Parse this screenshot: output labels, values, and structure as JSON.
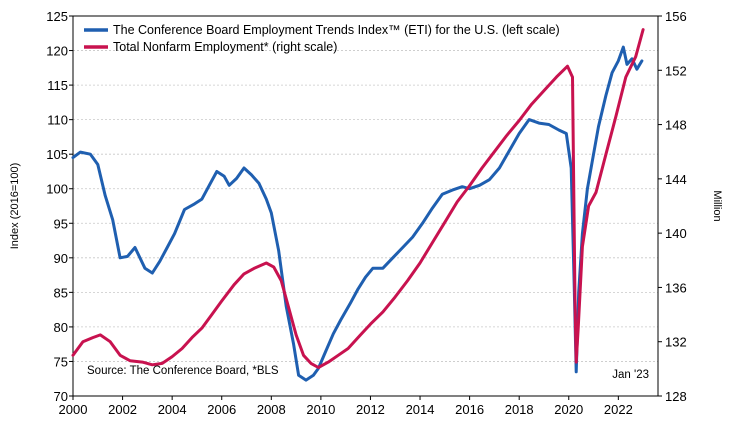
{
  "chart_data": {
    "type": "line",
    "title": "",
    "legend_position": "top-left",
    "grid": true,
    "left_axis": {
      "label": "Index (2016=100)",
      "range": [
        70,
        125
      ],
      "ticks": [
        70,
        75,
        80,
        85,
        90,
        95,
        100,
        105,
        110,
        115,
        120,
        125
      ]
    },
    "right_axis": {
      "label": "Million",
      "range": [
        128,
        156
      ],
      "ticks": [
        128,
        132,
        136,
        140,
        144,
        148,
        152,
        156
      ]
    },
    "x_axis": {
      "range": [
        2000,
        2023.6
      ],
      "ticks": [
        "2000",
        "2002",
        "2004",
        "2006",
        "2008",
        "2010",
        "2012",
        "2014",
        "2016",
        "2018",
        "2020",
        "2022"
      ]
    },
    "series": [
      {
        "name": "The Conference Board Employment Trends Index™ (ETI) for the U.S. (left scale)",
        "axis": "left",
        "color": "#1f5fb0",
        "points": [
          [
            2000.0,
            104.5
          ],
          [
            2000.3,
            105.3
          ],
          [
            2000.7,
            105.0
          ],
          [
            2001.0,
            103.5
          ],
          [
            2001.3,
            99.0
          ],
          [
            2001.6,
            95.5
          ],
          [
            2001.9,
            90.0
          ],
          [
            2002.2,
            90.2
          ],
          [
            2002.5,
            91.5
          ],
          [
            2002.9,
            88.5
          ],
          [
            2003.2,
            87.8
          ],
          [
            2003.5,
            89.5
          ],
          [
            2003.8,
            91.5
          ],
          [
            2004.1,
            93.5
          ],
          [
            2004.5,
            97.0
          ],
          [
            2004.9,
            97.8
          ],
          [
            2005.2,
            98.5
          ],
          [
            2005.5,
            100.5
          ],
          [
            2005.8,
            102.5
          ],
          [
            2006.1,
            101.8
          ],
          [
            2006.3,
            100.5
          ],
          [
            2006.6,
            101.5
          ],
          [
            2006.9,
            103.0
          ],
          [
            2007.2,
            102.0
          ],
          [
            2007.5,
            100.8
          ],
          [
            2007.8,
            98.5
          ],
          [
            2008.0,
            96.5
          ],
          [
            2008.3,
            91.0
          ],
          [
            2008.6,
            83.0
          ],
          [
            2008.9,
            77.5
          ],
          [
            2009.1,
            73.0
          ],
          [
            2009.4,
            72.3
          ],
          [
            2009.7,
            73.0
          ],
          [
            2009.9,
            74.0
          ],
          [
            2010.2,
            76.5
          ],
          [
            2010.5,
            79.0
          ],
          [
            2010.8,
            81.0
          ],
          [
            2011.2,
            83.5
          ],
          [
            2011.5,
            85.5
          ],
          [
            2011.8,
            87.2
          ],
          [
            2012.1,
            88.5
          ],
          [
            2012.5,
            88.5
          ],
          [
            2012.9,
            90.0
          ],
          [
            2013.3,
            91.5
          ],
          [
            2013.7,
            93.0
          ],
          [
            2014.1,
            95.0
          ],
          [
            2014.5,
            97.2
          ],
          [
            2014.9,
            99.2
          ],
          [
            2015.3,
            99.8
          ],
          [
            2015.7,
            100.3
          ],
          [
            2016.0,
            100.0
          ],
          [
            2016.4,
            100.5
          ],
          [
            2016.8,
            101.3
          ],
          [
            2017.2,
            103.0
          ],
          [
            2017.6,
            105.5
          ],
          [
            2018.0,
            108.0
          ],
          [
            2018.4,
            110.0
          ],
          [
            2018.8,
            109.5
          ],
          [
            2019.2,
            109.3
          ],
          [
            2019.6,
            108.5
          ],
          [
            2019.9,
            108.0
          ],
          [
            2020.1,
            103.0
          ],
          [
            2020.22,
            86.0
          ],
          [
            2020.3,
            73.5
          ],
          [
            2020.4,
            85.0
          ],
          [
            2020.55,
            93.5
          ],
          [
            2020.75,
            100.0
          ],
          [
            2020.95,
            104.0
          ],
          [
            2021.2,
            109.0
          ],
          [
            2021.5,
            113.5
          ],
          [
            2021.75,
            116.8
          ],
          [
            2022.0,
            118.5
          ],
          [
            2022.2,
            120.5
          ],
          [
            2022.35,
            118.0
          ],
          [
            2022.55,
            118.8
          ],
          [
            2022.75,
            117.3
          ],
          [
            2022.95,
            118.5
          ]
        ]
      },
      {
        "name": "Total Nonfarm Employment* (right scale)",
        "axis": "right",
        "color": "#c8124f",
        "points": [
          [
            2000.0,
            131.0
          ],
          [
            2000.4,
            132.0
          ],
          [
            2000.8,
            132.3
          ],
          [
            2001.1,
            132.5
          ],
          [
            2001.5,
            132.0
          ],
          [
            2001.9,
            131.0
          ],
          [
            2002.3,
            130.6
          ],
          [
            2002.8,
            130.5
          ],
          [
            2003.2,
            130.3
          ],
          [
            2003.6,
            130.4
          ],
          [
            2004.0,
            130.9
          ],
          [
            2004.4,
            131.5
          ],
          [
            2004.8,
            132.3
          ],
          [
            2005.2,
            133.0
          ],
          [
            2005.6,
            134.0
          ],
          [
            2006.0,
            135.0
          ],
          [
            2006.5,
            136.2
          ],
          [
            2006.9,
            137.0
          ],
          [
            2007.3,
            137.4
          ],
          [
            2007.8,
            137.8
          ],
          [
            2008.1,
            137.5
          ],
          [
            2008.4,
            136.5
          ],
          [
            2008.7,
            134.5
          ],
          [
            2009.0,
            132.5
          ],
          [
            2009.3,
            131.0
          ],
          [
            2009.6,
            130.4
          ],
          [
            2009.9,
            130.1
          ],
          [
            2010.3,
            130.5
          ],
          [
            2010.7,
            131.0
          ],
          [
            2011.1,
            131.5
          ],
          [
            2011.6,
            132.5
          ],
          [
            2012.0,
            133.3
          ],
          [
            2012.5,
            134.2
          ],
          [
            2013.0,
            135.3
          ],
          [
            2013.5,
            136.5
          ],
          [
            2014.0,
            137.8
          ],
          [
            2014.5,
            139.3
          ],
          [
            2015.0,
            140.8
          ],
          [
            2015.5,
            142.3
          ],
          [
            2016.0,
            143.5
          ],
          [
            2016.5,
            144.8
          ],
          [
            2017.0,
            146.0
          ],
          [
            2017.5,
            147.2
          ],
          [
            2018.0,
            148.3
          ],
          [
            2018.5,
            149.5
          ],
          [
            2019.0,
            150.5
          ],
          [
            2019.5,
            151.5
          ],
          [
            2019.95,
            152.3
          ],
          [
            2020.15,
            151.5
          ],
          [
            2020.25,
            135.0
          ],
          [
            2020.3,
            130.5
          ],
          [
            2020.38,
            133.0
          ],
          [
            2020.55,
            139.0
          ],
          [
            2020.8,
            142.0
          ],
          [
            2021.1,
            143.0
          ],
          [
            2021.5,
            145.8
          ],
          [
            2021.9,
            148.6
          ],
          [
            2022.3,
            151.5
          ],
          [
            2022.7,
            153.0
          ],
          [
            2023.0,
            155.0
          ]
        ]
      }
    ],
    "annotations": [
      "Source: The Conference Board, *BLS",
      "Jan '23"
    ]
  }
}
